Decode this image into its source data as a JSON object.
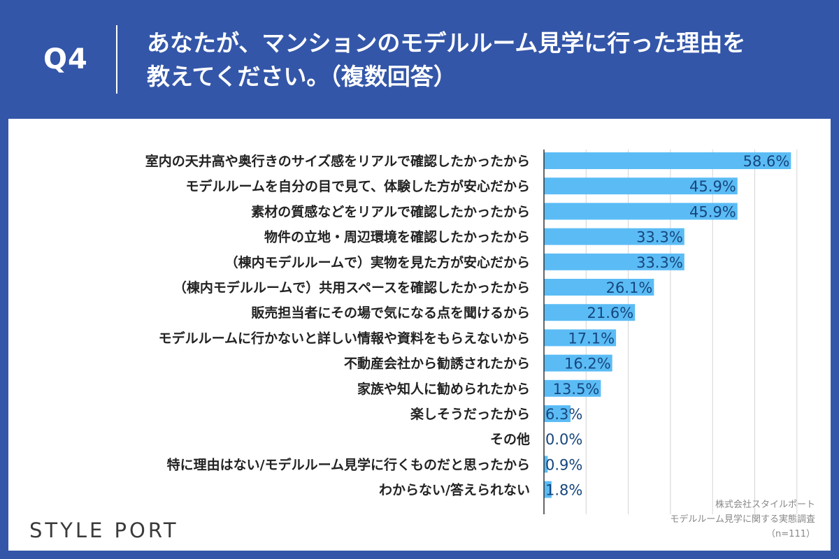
{
  "header": {
    "question_label": "Q4",
    "title_line1": "あなたが、マンションのモデルルーム見学に行った理由を",
    "title_line2": "教えてください。（複数回答）"
  },
  "brand": {
    "logo_text": "STYLE PORT"
  },
  "source": {
    "company": "株式会社スタイルポート",
    "survey": "モデルルーム見学に関する実態調査",
    "sample": "（n=111）"
  },
  "colors": {
    "header_bg": "#3356a8",
    "bar": "#5bbcf5",
    "value_label": "#16467d",
    "category_label": "#222222",
    "grid": "#d4d4d4"
  },
  "chart_data": {
    "type": "bar",
    "orientation": "horizontal",
    "categories": [
      "室内の天井高や奥行きのサイズ感をリアルで確認したかったから",
      "モデルルームを自分の目で見て、体験した方が安心だから",
      "素材の質感などをリアルで確認したかったから",
      "物件の立地・周辺環境を確認したかったから",
      "（棟内モデルルームで）実物を見た方が安心だから",
      "（棟内モデルルームで）共用スペースを確認したかったから",
      "販売担当者にその場で気になる点を聞けるから",
      "モデルルームに行かないと詳しい情報や資料をもらえないから",
      "不動産会社から勧誘されたから",
      "家族や知人に勧められたから",
      "楽しそうだったから",
      "その他",
      "特に理由はない/モデルルーム見学に行くものだと思ったから",
      "わからない/答えられない"
    ],
    "values": [
      58.6,
      45.9,
      45.9,
      33.3,
      33.3,
      26.1,
      21.6,
      17.1,
      16.2,
      13.5,
      6.3,
      0.0,
      0.9,
      1.8
    ],
    "value_labels": [
      "58.6%",
      "45.9%",
      "45.9%",
      "33.3%",
      "33.3%",
      "26.1%",
      "21.6%",
      "17.1%",
      "16.2%",
      "13.5%",
      "6.3%",
      "0.0%",
      "0.9%",
      "1.8%"
    ],
    "xlim": [
      0,
      70
    ],
    "grid": true
  }
}
